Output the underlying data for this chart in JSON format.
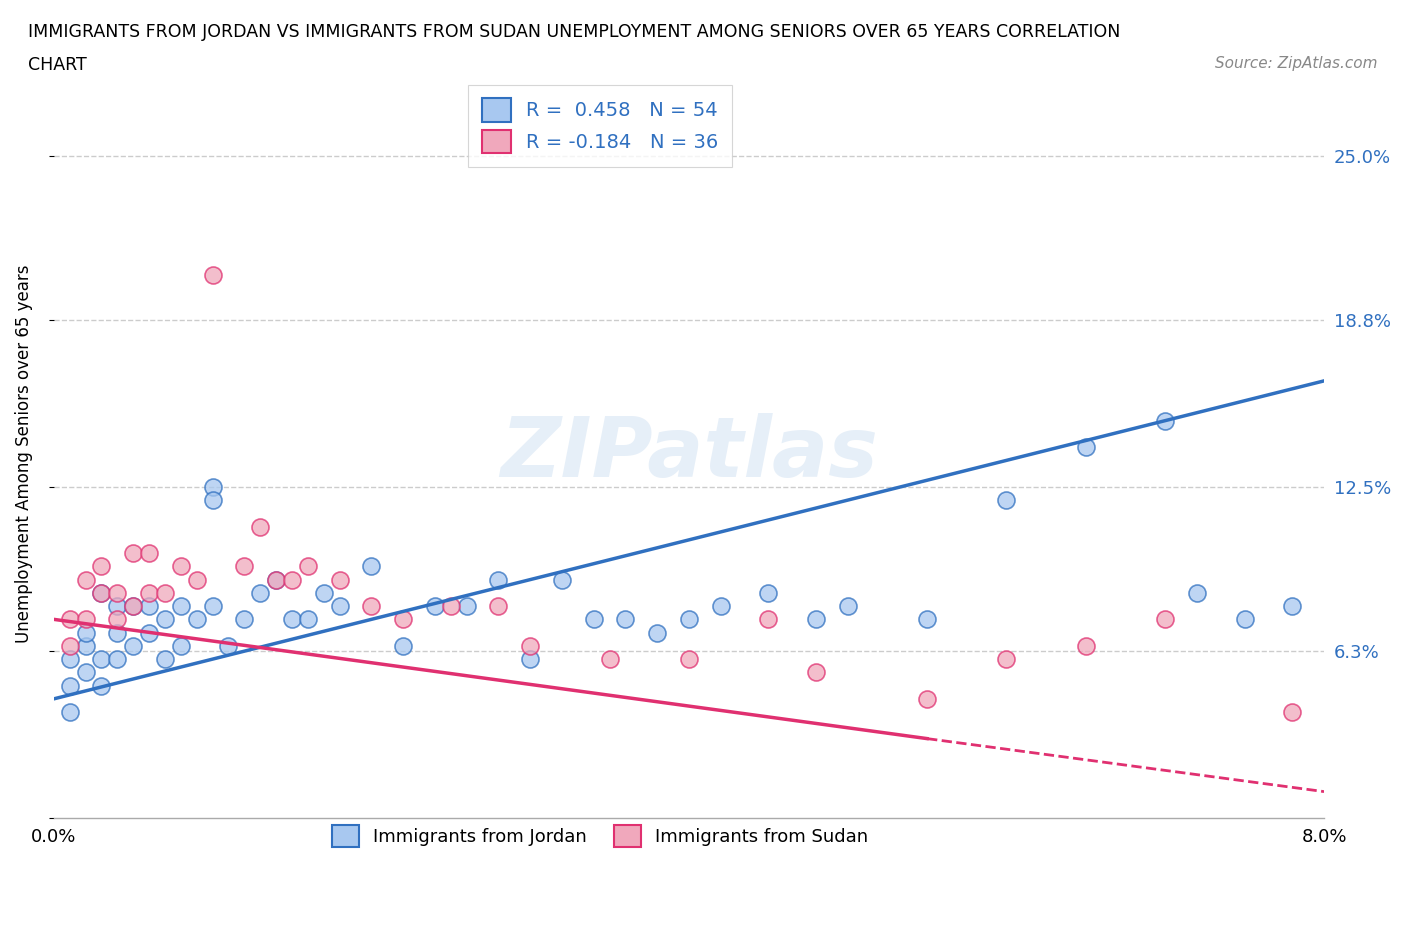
{
  "title_line1": "IMMIGRANTS FROM JORDAN VS IMMIGRANTS FROM SUDAN UNEMPLOYMENT AMONG SENIORS OVER 65 YEARS CORRELATION",
  "title_line2": "CHART",
  "source": "Source: ZipAtlas.com",
  "ylabel": "Unemployment Among Seniors over 65 years",
  "xlim": [
    0.0,
    0.08
  ],
  "ylim": [
    0.0,
    0.275
  ],
  "yticks": [
    0.0,
    0.063,
    0.125,
    0.188,
    0.25
  ],
  "ytick_labels": [
    "",
    "6.3%",
    "12.5%",
    "18.8%",
    "25.0%"
  ],
  "xticks": [
    0.0,
    0.01,
    0.02,
    0.03,
    0.04,
    0.05,
    0.06,
    0.07,
    0.08
  ],
  "xtick_labels": [
    "0.0%",
    "",
    "",
    "",
    "",
    "",
    "",
    "",
    "8.0%"
  ],
  "jordan_color": "#A8C8F0",
  "sudan_color": "#F0A8BC",
  "jordan_line_color": "#3070C0",
  "sudan_line_color": "#E03070",
  "R_jordan": 0.458,
  "N_jordan": 54,
  "R_sudan": -0.184,
  "N_sudan": 36,
  "jordan_scatter_x": [
    0.001,
    0.001,
    0.001,
    0.002,
    0.002,
    0.002,
    0.003,
    0.003,
    0.004,
    0.004,
    0.004,
    0.005,
    0.005,
    0.006,
    0.006,
    0.007,
    0.007,
    0.008,
    0.008,
    0.009,
    0.01,
    0.01,
    0.011,
    0.012,
    0.013,
    0.014,
    0.015,
    0.016,
    0.017,
    0.018,
    0.02,
    0.022,
    0.024,
    0.026,
    0.028,
    0.03,
    0.032,
    0.034,
    0.036,
    0.038,
    0.04,
    0.042,
    0.045,
    0.048,
    0.05,
    0.055,
    0.06,
    0.065,
    0.07,
    0.072,
    0.075,
    0.078,
    0.01,
    0.003
  ],
  "jordan_scatter_y": [
    0.04,
    0.05,
    0.06,
    0.055,
    0.065,
    0.07,
    0.06,
    0.05,
    0.06,
    0.07,
    0.08,
    0.065,
    0.08,
    0.07,
    0.08,
    0.06,
    0.075,
    0.065,
    0.08,
    0.075,
    0.08,
    0.125,
    0.065,
    0.075,
    0.085,
    0.09,
    0.075,
    0.075,
    0.085,
    0.08,
    0.095,
    0.065,
    0.08,
    0.08,
    0.09,
    0.06,
    0.09,
    0.075,
    0.075,
    0.07,
    0.075,
    0.08,
    0.085,
    0.075,
    0.08,
    0.075,
    0.12,
    0.14,
    0.15,
    0.085,
    0.075,
    0.08,
    0.12,
    0.085
  ],
  "sudan_scatter_x": [
    0.001,
    0.001,
    0.002,
    0.002,
    0.003,
    0.003,
    0.004,
    0.004,
    0.005,
    0.005,
    0.006,
    0.006,
    0.007,
    0.008,
    0.009,
    0.01,
    0.012,
    0.013,
    0.014,
    0.015,
    0.016,
    0.018,
    0.02,
    0.022,
    0.025,
    0.028,
    0.03,
    0.035,
    0.04,
    0.045,
    0.048,
    0.055,
    0.06,
    0.065,
    0.07,
    0.078
  ],
  "sudan_scatter_y": [
    0.065,
    0.075,
    0.075,
    0.09,
    0.085,
    0.095,
    0.075,
    0.085,
    0.08,
    0.1,
    0.085,
    0.1,
    0.085,
    0.095,
    0.09,
    0.205,
    0.095,
    0.11,
    0.09,
    0.09,
    0.095,
    0.09,
    0.08,
    0.075,
    0.08,
    0.08,
    0.065,
    0.06,
    0.06,
    0.075,
    0.055,
    0.045,
    0.06,
    0.065,
    0.075,
    0.04
  ],
  "background_color": "#FFFFFF",
  "grid_color": "#CCCCCC",
  "watermark_text": "ZIPatlas",
  "legend_jordan": "Immigrants from Jordan",
  "legend_sudan": "Immigrants from Sudan"
}
